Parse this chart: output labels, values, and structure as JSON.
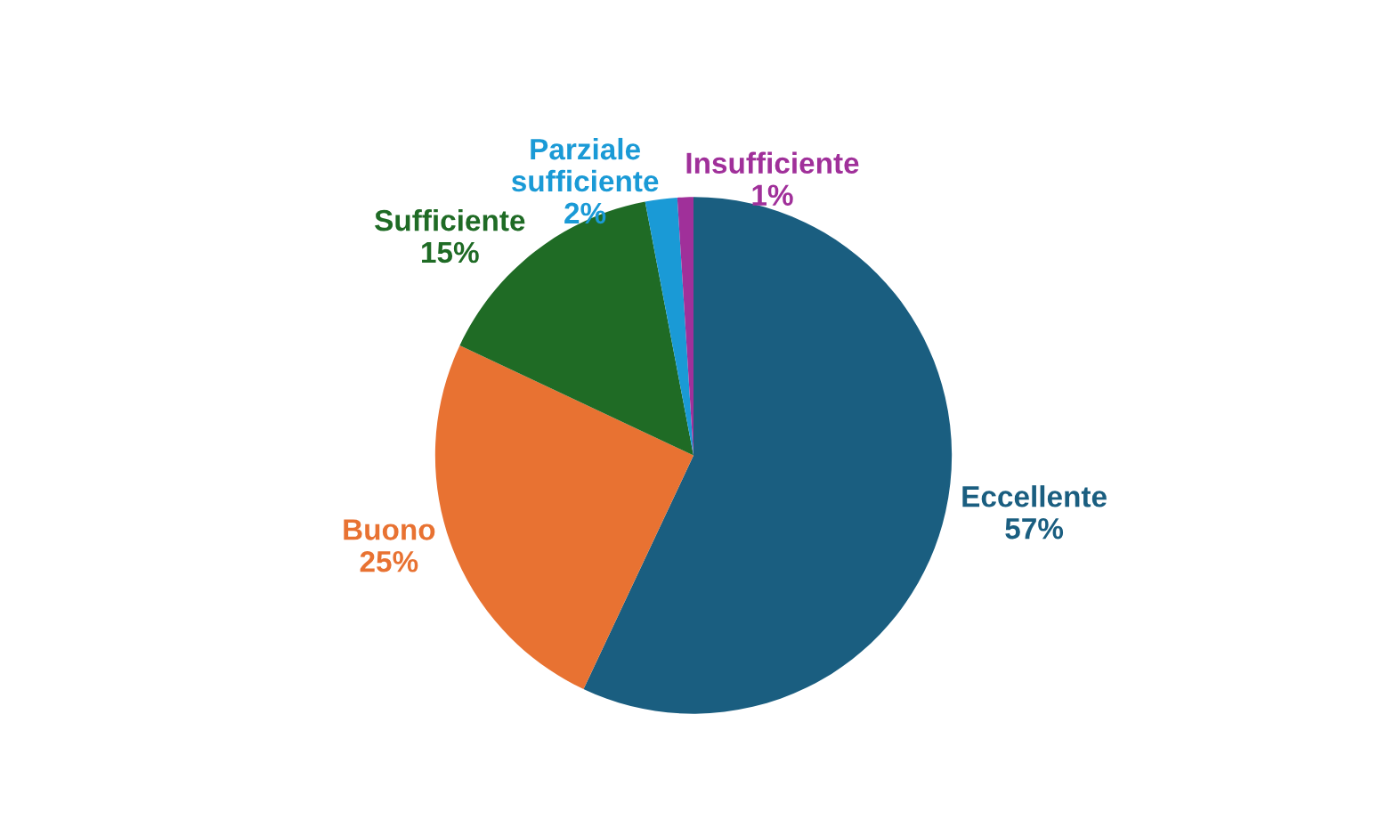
{
  "chart_data": {
    "type": "pie",
    "categories": [
      "Eccellente",
      "Buono",
      "Sufficiente",
      "Parziale sufficiente",
      "Insufficiente"
    ],
    "values": [
      57,
      25,
      15,
      2,
      1
    ],
    "colors": [
      "#1a5e80",
      "#e87232",
      "#1f6b25",
      "#1a9ad6",
      "#a0309a"
    ],
    "value_labels": [
      "57%",
      "25%",
      "15%",
      "2%",
      "1%"
    ],
    "legend": false
  }
}
